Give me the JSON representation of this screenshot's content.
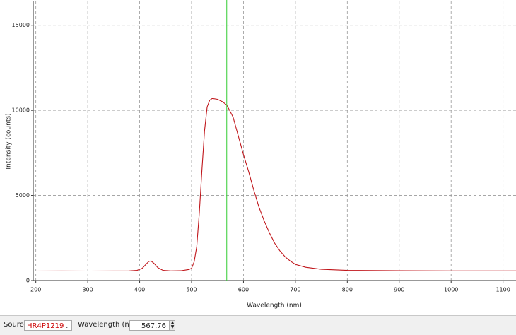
{
  "chart_data": {
    "type": "line",
    "x_label": "Wavelength (nm)",
    "y_label": "Intensity (counts)",
    "xlim": [
      195,
      1125
    ],
    "ylim": [
      0,
      16400
    ],
    "xticks": [
      200,
      300,
      400,
      500,
      600,
      700,
      800,
      900,
      1000,
      1100
    ],
    "yticks": [
      0,
      5000,
      10000,
      15000
    ],
    "grid": true,
    "cursor": 567.76,
    "cursor_color": "#33cc33",
    "series": [
      {
        "color": "#c0161b",
        "x": [
          195,
          250,
          300,
          350,
          380,
          395,
          405,
          412,
          418,
          422,
          428,
          435,
          445,
          460,
          480,
          495,
          500,
          505,
          510,
          515,
          520,
          525,
          530,
          535,
          540,
          550,
          560,
          568,
          575,
          580,
          590,
          600,
          610,
          620,
          630,
          640,
          650,
          660,
          670,
          680,
          690,
          700,
          720,
          750,
          800,
          900,
          1000,
          1125
        ],
        "values": [
          560,
          565,
          560,
          565,
          570,
          600,
          720,
          950,
          1130,
          1150,
          1000,
          760,
          600,
          570,
          580,
          650,
          720,
          1100,
          2000,
          4000,
          6500,
          8800,
          10200,
          10600,
          10700,
          10650,
          10500,
          10300,
          9900,
          9600,
          8500,
          7400,
          6400,
          5300,
          4300,
          3500,
          2800,
          2200,
          1750,
          1400,
          1150,
          950,
          780,
          660,
          600,
          580,
          570,
          570
        ]
      }
    ]
  },
  "toolbar": {
    "source_label": "Source:",
    "source": "HR4P1219",
    "wavelength_label": "Wavelength (nm):"
  }
}
